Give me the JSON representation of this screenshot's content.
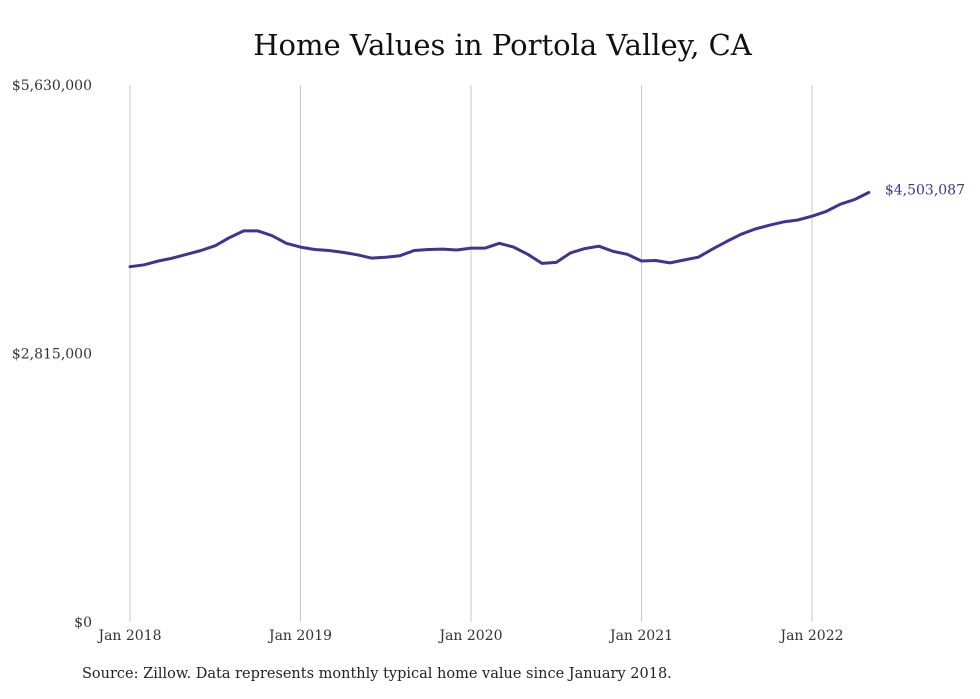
{
  "chart_data": {
    "type": "line",
    "title": "Home Values in Portola Valley, CA",
    "xlabel": "",
    "ylabel": "",
    "ylim": [
      0,
      5630000
    ],
    "y_ticks": [
      {
        "value": 5630000,
        "label": "$5,630,000"
      },
      {
        "value": 2815000,
        "label": "$2,815,000"
      },
      {
        "value": 0,
        "label": "$0"
      }
    ],
    "x_ticks": [
      {
        "date": "2018-01",
        "label": "Jan 2018"
      },
      {
        "date": "2019-01",
        "label": "Jan 2019"
      },
      {
        "date": "2020-01",
        "label": "Jan 2020"
      },
      {
        "date": "2021-01",
        "label": "Jan 2021"
      },
      {
        "date": "2022-01",
        "label": "Jan 2022"
      }
    ],
    "grid": "vertical",
    "line_color": "#3d3591",
    "series": [
      {
        "x": [
          "2018-01",
          "2018-02",
          "2018-03",
          "2018-04",
          "2018-05",
          "2018-06",
          "2018-07",
          "2018-08",
          "2018-09",
          "2018-10",
          "2018-11",
          "2018-12",
          "2019-01",
          "2019-02",
          "2019-03",
          "2019-04",
          "2019-05",
          "2019-06",
          "2019-07",
          "2019-08",
          "2019-09",
          "2019-10",
          "2019-11",
          "2019-12",
          "2020-01",
          "2020-02",
          "2020-03",
          "2020-04",
          "2020-05",
          "2020-06",
          "2020-07",
          "2020-08",
          "2020-09",
          "2020-10",
          "2020-11",
          "2020-12",
          "2021-01",
          "2021-02",
          "2021-03",
          "2021-04",
          "2021-05",
          "2021-06",
          "2021-07",
          "2021-08",
          "2021-09",
          "2021-10",
          "2021-11",
          "2021-12",
          "2022-01",
          "2022-02",
          "2022-03",
          "2022-04",
          "2022-05"
        ],
        "values": [
          3725000,
          3745000,
          3785000,
          3815000,
          3855000,
          3895000,
          3945000,
          4030000,
          4100000,
          4100000,
          4050000,
          3970000,
          3930000,
          3905000,
          3895000,
          3875000,
          3850000,
          3815000,
          3825000,
          3840000,
          3895000,
          3905000,
          3910000,
          3900000,
          3920000,
          3920000,
          3970000,
          3930000,
          3855000,
          3760000,
          3770000,
          3870000,
          3915000,
          3940000,
          3885000,
          3855000,
          3785000,
          3790000,
          3765000,
          3795000,
          3825000,
          3910000,
          3990000,
          4065000,
          4120000,
          4160000,
          4195000,
          4215000,
          4255000,
          4305000,
          4380000,
          4430000,
          4503087
        ]
      }
    ],
    "end_label": "$4,503,087"
  },
  "source_note": "Source: Zillow. Data represents monthly typical home value since January 2018."
}
